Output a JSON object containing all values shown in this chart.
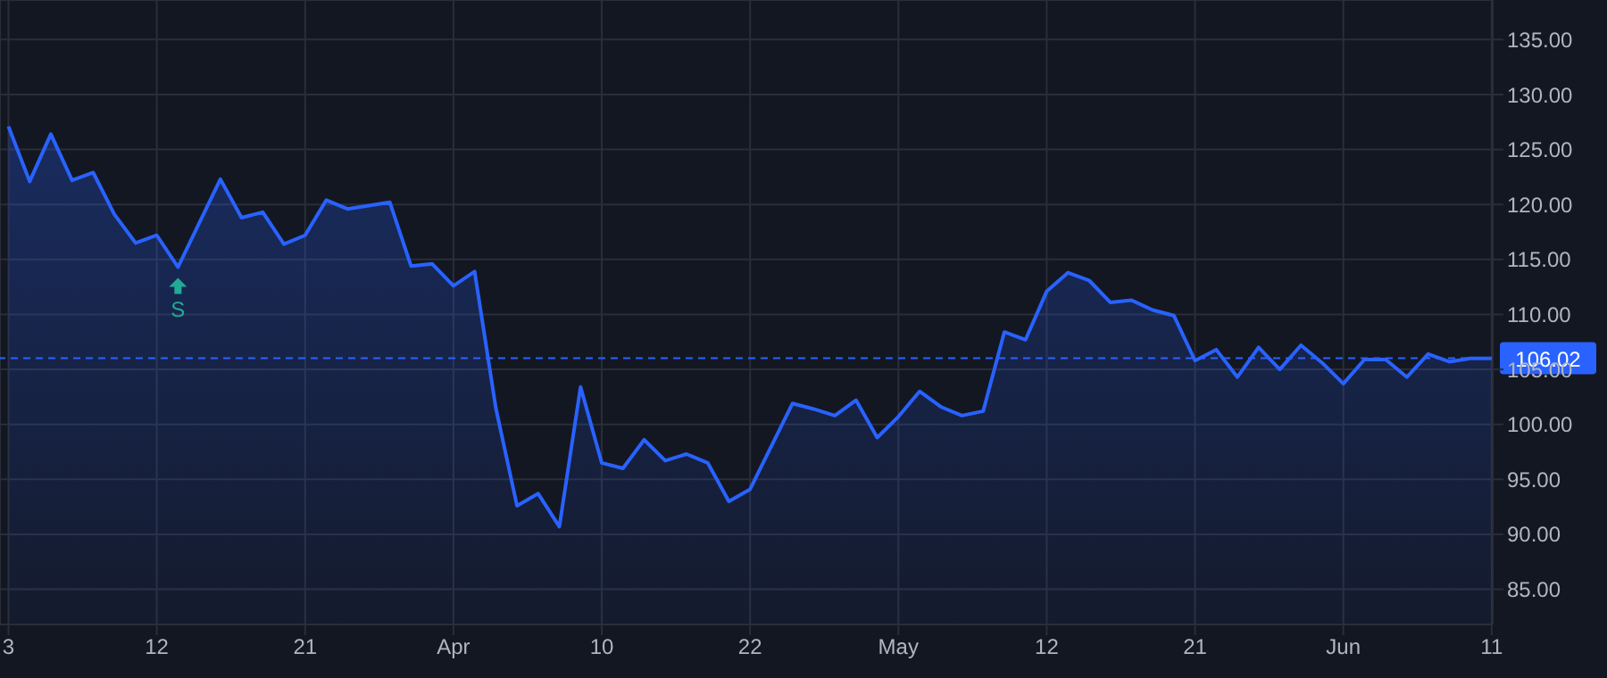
{
  "chart_data": {
    "type": "area",
    "categories": [
      "3",
      null,
      null,
      null,
      null,
      null,
      null,
      "12",
      null,
      null,
      null,
      null,
      null,
      null,
      "21",
      null,
      null,
      null,
      null,
      null,
      null,
      "Apr",
      null,
      null,
      null,
      null,
      null,
      null,
      "10",
      null,
      null,
      null,
      null,
      null,
      null,
      "22",
      null,
      null,
      null,
      null,
      null,
      null,
      "May",
      null,
      null,
      null,
      null,
      null,
      null,
      "12",
      null,
      null,
      null,
      null,
      null,
      null,
      "21",
      null,
      null,
      null,
      null,
      null,
      null,
      "Jun",
      null,
      null,
      null,
      null,
      null,
      null,
      "11"
    ],
    "series": [
      {
        "color": "#2962ff",
        "values": [
          127.1,
          122.1,
          126.4,
          122.2,
          122.9,
          119.1,
          116.5,
          117.2,
          114.3,
          118.3,
          122.3,
          118.8,
          119.3,
          116.4,
          117.2,
          120.4,
          119.6,
          119.9,
          120.2,
          114.4,
          114.6,
          112.6,
          113.9,
          101.5,
          92.6,
          93.7,
          90.7,
          103.4,
          96.5,
          96.0,
          98.6,
          96.7,
          97.3,
          96.5,
          93.0,
          94.1,
          98.0,
          101.9,
          101.4,
          100.8,
          102.2,
          98.8,
          100.7,
          103.0,
          101.6,
          100.8,
          101.2,
          108.4,
          107.7,
          112.1,
          113.8,
          113.1,
          111.1,
          111.3,
          110.4,
          109.9,
          105.8,
          106.8,
          104.3,
          107.0,
          105.0,
          107.2,
          105.6,
          103.7,
          105.9,
          105.9,
          104.3,
          106.4,
          105.7,
          106.0,
          106.0
        ]
      }
    ],
    "ylim": [
      81.8,
      138.6
    ],
    "yticks": [
      {
        "value": 85,
        "label": "85.00"
      },
      {
        "value": 90,
        "label": "90.00"
      },
      {
        "value": 95,
        "label": "95.00"
      },
      {
        "value": 100,
        "label": "100.00"
      },
      {
        "value": 105,
        "label": "105.00"
      },
      {
        "value": 110,
        "label": "110.00"
      },
      {
        "value": 115,
        "label": "115.00"
      },
      {
        "value": 120,
        "label": "120.00"
      },
      {
        "value": 125,
        "label": "125.00"
      },
      {
        "value": 130,
        "label": "130.00"
      },
      {
        "value": 135,
        "label": "135.00"
      }
    ],
    "ref_lines": [
      {
        "axis": "y",
        "value": 106.02,
        "label": "106.02",
        "color": "#2962ff",
        "line_style": "dashed"
      }
    ],
    "annotations": [
      {
        "text": "S",
        "y": 114.3
      }
    ],
    "grid": true
  }
}
